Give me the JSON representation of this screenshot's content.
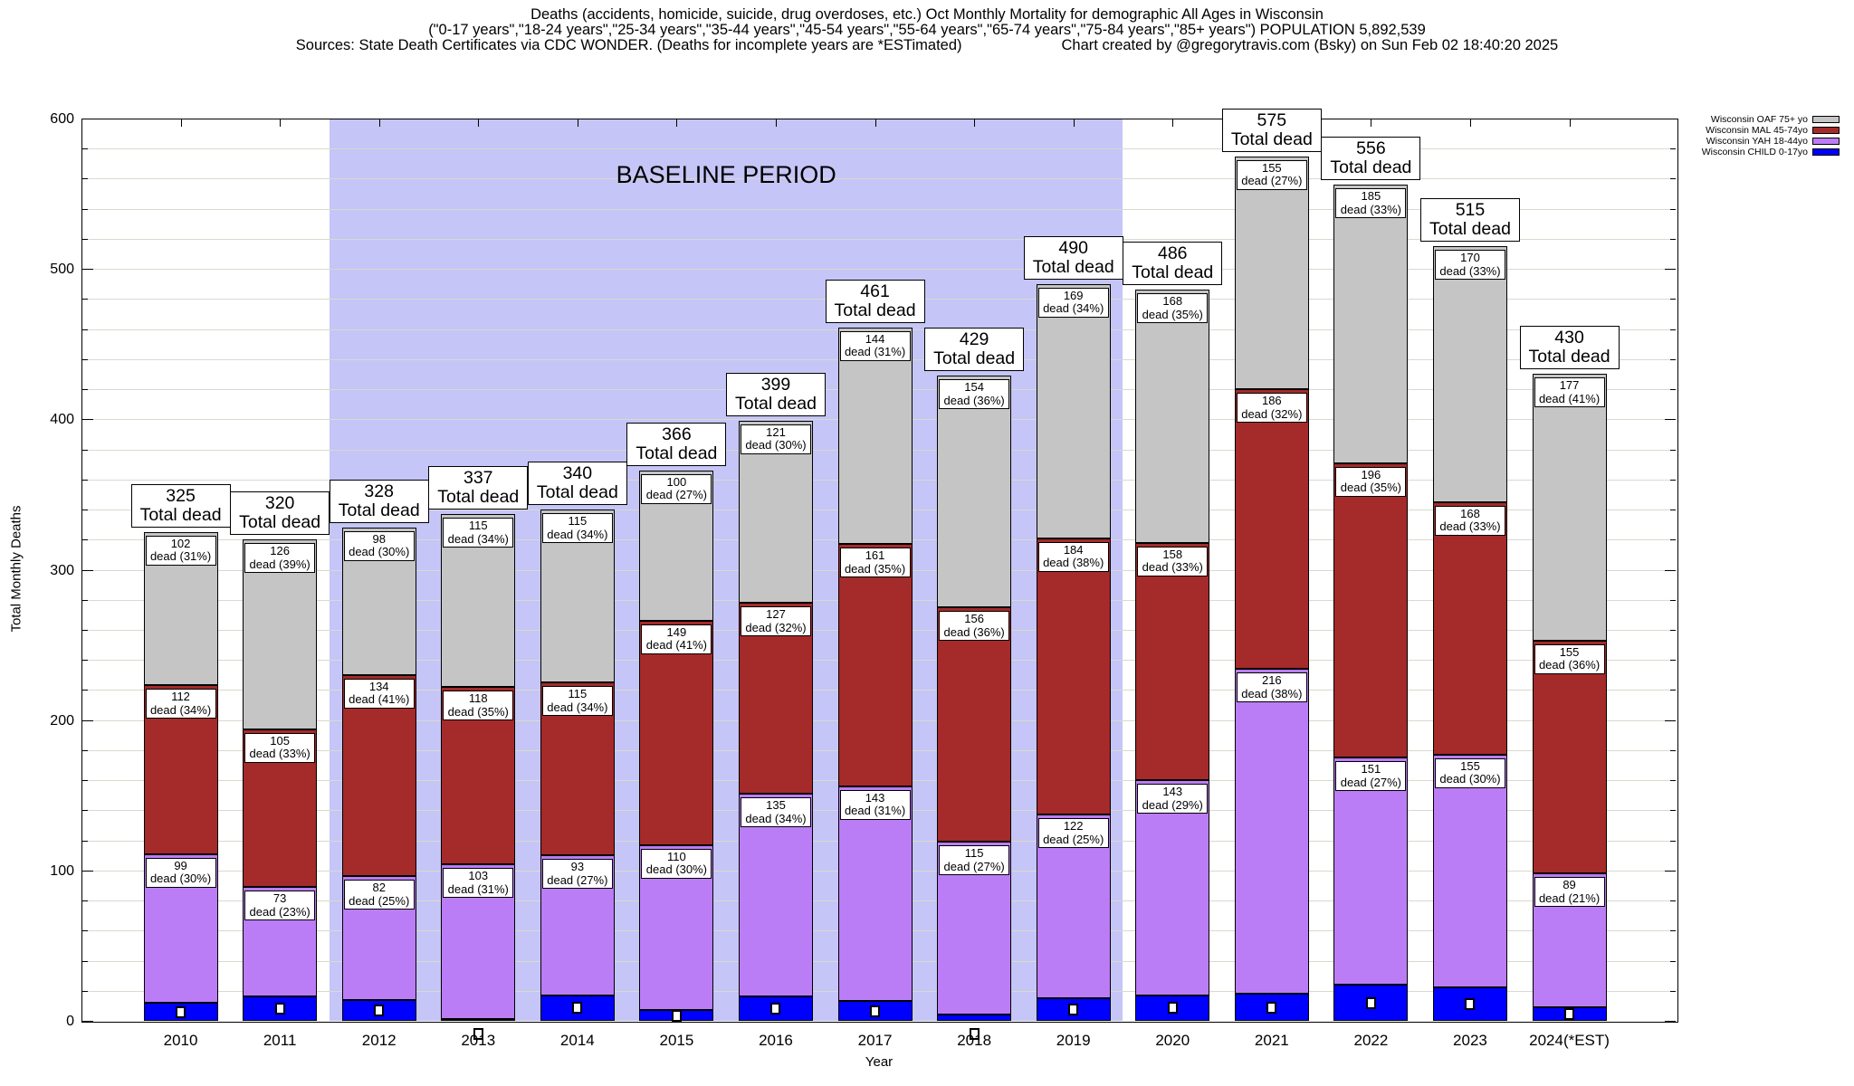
{
  "title": {
    "line1": "Deaths (accidents, homicide, suicide, drug overdoses, etc.) Oct Monthly Mortality for demographic All Ages in Wisconsin",
    "line2": "(\"0-17 years\",\"18-24 years\",\"25-34 years\",\"35-44 years\",\"45-54 years\",\"55-64 years\",\"65-74 years\",\"75-84 years\",\"85+ years\") POPULATION 5,892,539",
    "line3_left": "Sources: State Death Certificates via CDC WONDER. (Deaths for incomplete years are *ESTimated)",
    "line3_right": "Chart created by @gregorytravis.com (Bsky) on Sun Feb 02 18:40:20 2025"
  },
  "annotation": "BASELINE PERIOD",
  "axes": {
    "y_label": "Total Monthly Deaths",
    "x_label": "Year",
    "y_ticks": [
      0,
      100,
      200,
      300,
      400,
      500,
      600
    ],
    "y_minor_step": 20,
    "y_max": 600
  },
  "legend": {
    "entries": [
      {
        "key": "oaf",
        "label": "Wisconsin OAF 75+ yo",
        "color": "#c5c5c5"
      },
      {
        "key": "mal",
        "label": "Wisconsin MAL 45-74yo",
        "color": "#a52a2a"
      },
      {
        "key": "yah",
        "label": "Wisconsin YAH 18-44yo",
        "color": "#bb7df6"
      },
      {
        "key": "child",
        "label": "Wisconsin CHILD 0-17yo",
        "color": "#0000ff"
      }
    ]
  },
  "chart_data": {
    "type": "bar",
    "stacked": true,
    "grid": true,
    "ylim": [
      0,
      600
    ],
    "colors": {
      "child": "#0000ff",
      "yah": "#bb7df6",
      "mal": "#a52a2a",
      "oaf": "#c5c5c5"
    },
    "baseline_region": {
      "from_year": 2011.5,
      "to_year": 2019.5,
      "color": "#c5c5f7"
    },
    "categories": [
      "2010",
      "2011",
      "2012",
      "2013",
      "2014",
      "2015",
      "2016",
      "2017",
      "2018",
      "2019",
      "2020",
      "2021",
      "2022",
      "2023",
      "2024(*EST)"
    ],
    "total_label_suffix": "Total dead",
    "segment_label_prefix": "dead",
    "bars": [
      {
        "year": 2010,
        "label": "2010",
        "total": 325,
        "child": 12,
        "yah": {
          "value": 99,
          "pct": "30%"
        },
        "mal": {
          "value": 112,
          "pct": "34%"
        },
        "oaf": {
          "value": 102,
          "pct": "31%"
        }
      },
      {
        "year": 2011,
        "label": "2011",
        "total": 320,
        "child": 16,
        "yah": {
          "value": 73,
          "pct": "23%"
        },
        "mal": {
          "value": 105,
          "pct": "33%"
        },
        "oaf": {
          "value": 126,
          "pct": "39%"
        }
      },
      {
        "year": 2012,
        "label": "2012",
        "total": 328,
        "child": 14,
        "yah": {
          "value": 82,
          "pct": "25%"
        },
        "mal": {
          "value": 134,
          "pct": "41%"
        },
        "oaf": {
          "value": 98,
          "pct": "30%"
        }
      },
      {
        "year": 2013,
        "label": "2013",
        "total": 337,
        "child": 1,
        "yah": {
          "value": 103,
          "pct": "31%"
        },
        "mal": {
          "value": 118,
          "pct": "35%"
        },
        "oaf": {
          "value": 115,
          "pct": "34%"
        }
      },
      {
        "year": 2014,
        "label": "2014",
        "total": 340,
        "child": 17,
        "yah": {
          "value": 93,
          "pct": "27%"
        },
        "mal": {
          "value": 115,
          "pct": "34%"
        },
        "oaf": {
          "value": 115,
          "pct": "34%"
        }
      },
      {
        "year": 2015,
        "label": "2015",
        "total": 366,
        "child": 7,
        "yah": {
          "value": 110,
          "pct": "30%"
        },
        "mal": {
          "value": 149,
          "pct": "41%"
        },
        "oaf": {
          "value": 100,
          "pct": "27%"
        }
      },
      {
        "year": 2016,
        "label": "2016",
        "total": 399,
        "child": 16,
        "yah": {
          "value": 135,
          "pct": "34%"
        },
        "mal": {
          "value": 127,
          "pct": "32%"
        },
        "oaf": {
          "value": 121,
          "pct": "30%"
        }
      },
      {
        "year": 2017,
        "label": "2017",
        "total": 461,
        "child": 13,
        "yah": {
          "value": 143,
          "pct": "31%"
        },
        "mal": {
          "value": 161,
          "pct": "35%"
        },
        "oaf": {
          "value": 144,
          "pct": "31%"
        }
      },
      {
        "year": 2018,
        "label": "2018",
        "total": 429,
        "child": 4,
        "yah": {
          "value": 115,
          "pct": "27%"
        },
        "mal": {
          "value": 156,
          "pct": "36%"
        },
        "oaf": {
          "value": 154,
          "pct": "36%"
        }
      },
      {
        "year": 2019,
        "label": "2019",
        "total": 490,
        "child": 15,
        "yah": {
          "value": 122,
          "pct": "25%"
        },
        "mal": {
          "value": 184,
          "pct": "38%"
        },
        "oaf": {
          "value": 169,
          "pct": "34%"
        }
      },
      {
        "year": 2020,
        "label": "2020",
        "total": 486,
        "child": 17,
        "yah": {
          "value": 143,
          "pct": "29%"
        },
        "mal": {
          "value": 158,
          "pct": "33%"
        },
        "oaf": {
          "value": 168,
          "pct": "35%"
        }
      },
      {
        "year": 2021,
        "label": "2021",
        "total": 575,
        "child": 18,
        "yah": {
          "value": 216,
          "pct": "38%"
        },
        "mal": {
          "value": 186,
          "pct": "32%"
        },
        "oaf": {
          "value": 155,
          "pct": "27%"
        }
      },
      {
        "year": 2022,
        "label": "2022",
        "total": 556,
        "child": 24,
        "yah": {
          "value": 151,
          "pct": "27%"
        },
        "mal": {
          "value": 196,
          "pct": "35%"
        },
        "oaf": {
          "value": 185,
          "pct": "33%"
        }
      },
      {
        "year": 2023,
        "label": "2023",
        "total": 515,
        "child": 22,
        "yah": {
          "value": 155,
          "pct": "30%"
        },
        "mal": {
          "value": 168,
          "pct": "33%"
        },
        "oaf": {
          "value": 170,
          "pct": "33%"
        }
      },
      {
        "year": 2024,
        "label": "2024(*EST)",
        "total": 430,
        "child": 9,
        "yah": {
          "value": 89,
          "pct": "21%"
        },
        "mal": {
          "value": 155,
          "pct": "36%"
        },
        "oaf": {
          "value": 177,
          "pct": "41%"
        }
      }
    ]
  }
}
